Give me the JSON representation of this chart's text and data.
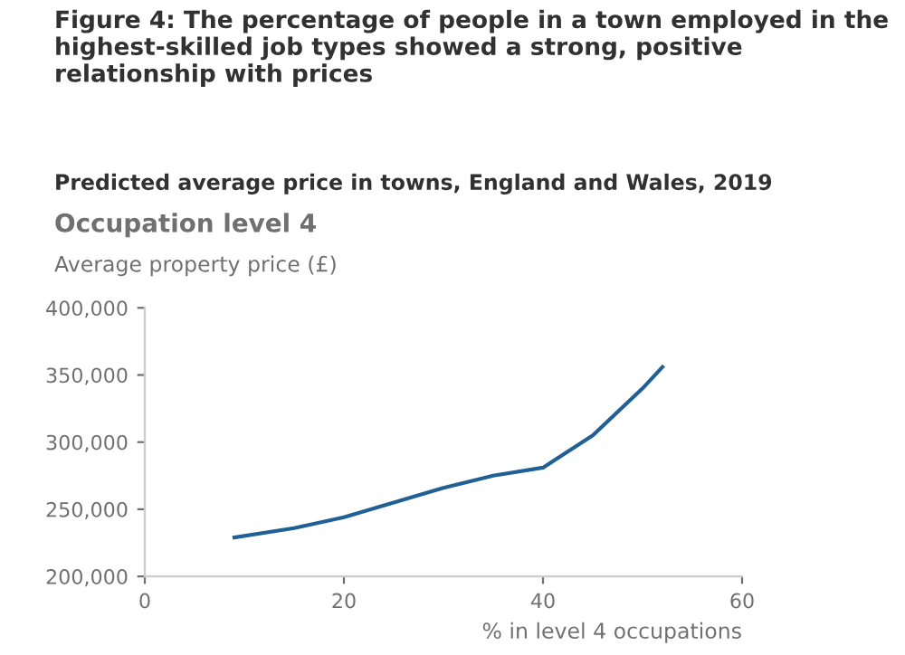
{
  "chart_data": {
    "type": "line",
    "title": "Figure 4: The percentage of people in a town employed in the highest-skilled job types showed a strong, positive relationship with prices",
    "subtitle": "Predicted average price in towns, England and Wales, 2019",
    "annotations": [
      "Occupation level 4"
    ],
    "ylabel": "Average property price (£)",
    "xlabel": "% in level 4 occupations",
    "x": [
      9,
      15,
      20,
      25,
      30,
      35,
      40,
      45,
      50,
      52
    ],
    "series": [
      {
        "color": "#206095",
        "values": [
          229000,
          236000,
          244000,
          255000,
          266000,
          275000,
          281000,
          305000,
          340000,
          356000
        ]
      }
    ],
    "xlim": [
      0,
      60
    ],
    "xticks": [
      0,
      20,
      40,
      60
    ],
    "ylim": [
      200000,
      400000
    ],
    "yticks": [
      {
        "value": 200000,
        "label": "200,000"
      },
      {
        "value": 250000,
        "label": "250,000"
      },
      {
        "value": 300000,
        "label": "300,000"
      },
      {
        "value": 350000,
        "label": "350,000"
      },
      {
        "value": 400000,
        "label": "400,000"
      }
    ],
    "grid": false,
    "marker": "none",
    "line_style": "solid"
  }
}
